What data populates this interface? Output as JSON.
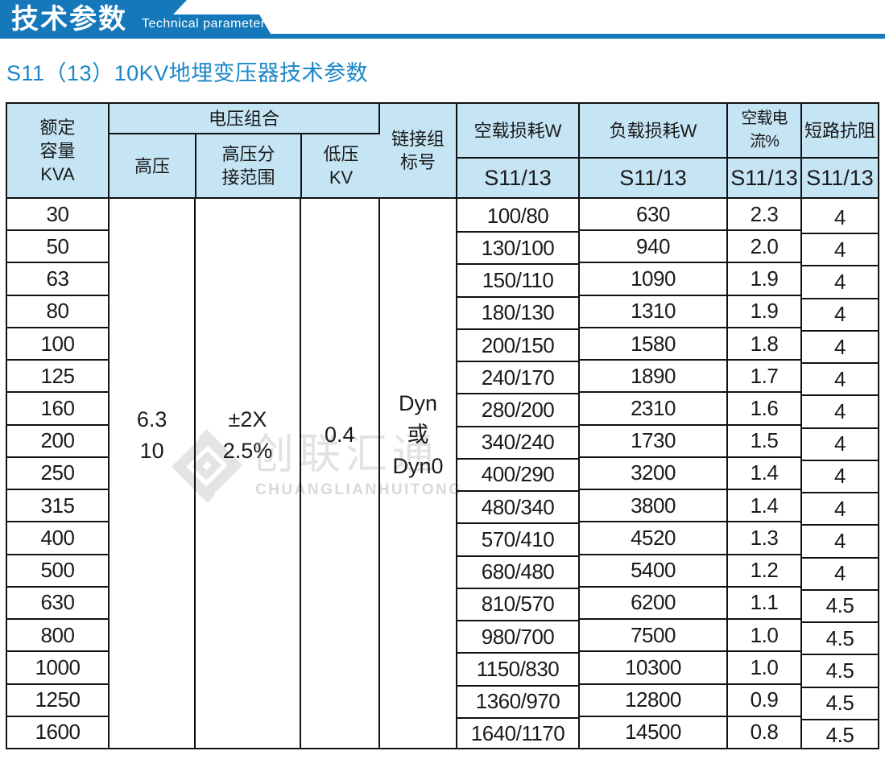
{
  "banner": {
    "title": "技术参数",
    "subtitle": "Technical parameter"
  },
  "page": {
    "title": "S11（13）10KV地埋变压器技术参数"
  },
  "watermark": {
    "cn": "创联汇通",
    "en": "CHUANGLIANHUITONG"
  },
  "colors": {
    "banner_blue": "#1478bb",
    "header_fill": "#c5e5f5",
    "title_blue": "#1a86c8",
    "border_black": "#111111",
    "wm_gray": "#e2e2e2",
    "wm_gray_dark": "#d9d9d9"
  },
  "table": {
    "headers": {
      "capacity": "额定\n容量\nKVA",
      "voltage_group": "电压组合",
      "hv": "高压",
      "hv_tap": "高压分\n接范围",
      "lv": "低压\nKV",
      "vector": "链接组\n标号",
      "no_load_loss": "空载损耗W",
      "load_loss": "负载损耗W",
      "no_load_current": "空载电流%",
      "impedance": "短路抗阻",
      "model": "S11/13"
    },
    "merged": {
      "hv": "6.3\n10",
      "hv_tap": "±2X\n2.5%",
      "lv": "0.4",
      "vector": "Dyn\n或\nDyn0"
    },
    "rows": {
      "capacity": [
        "30",
        "50",
        "63",
        "80",
        "100",
        "125",
        "160",
        "200",
        "250",
        "315",
        "400",
        "500",
        "630",
        "800",
        "1000",
        "1250",
        "1600"
      ],
      "no_load_loss": [
        "100/80",
        "130/100",
        "150/110",
        "180/130",
        "200/150",
        "240/170",
        "280/200",
        "340/240",
        "400/290",
        "480/340",
        "570/410",
        "680/480",
        "810/570",
        "980/700",
        "1150/830",
        "1360/970",
        "1640/1170"
      ],
      "load_loss": [
        "630",
        "940",
        "1090",
        "1310",
        "1580",
        "1890",
        "2310",
        "1730",
        "3200",
        "3800",
        "4520",
        "5400",
        "6200",
        "7500",
        "10300",
        "12800",
        "14500"
      ],
      "no_load_current": [
        "2.3",
        "2.0",
        "1.9",
        "1.9",
        "1.8",
        "1.7",
        "1.6",
        "1.5",
        "1.4",
        "1.4",
        "1.3",
        "1.2",
        "1.1",
        "1.0",
        "1.0",
        "0.9",
        "0.8"
      ],
      "impedance": [
        "4",
        "4",
        "4",
        "4",
        "4",
        "4",
        "4",
        "4",
        "4",
        "4",
        "4",
        "4",
        "4.5",
        "4.5",
        "4.5",
        "4.5",
        "4.5"
      ]
    }
  }
}
